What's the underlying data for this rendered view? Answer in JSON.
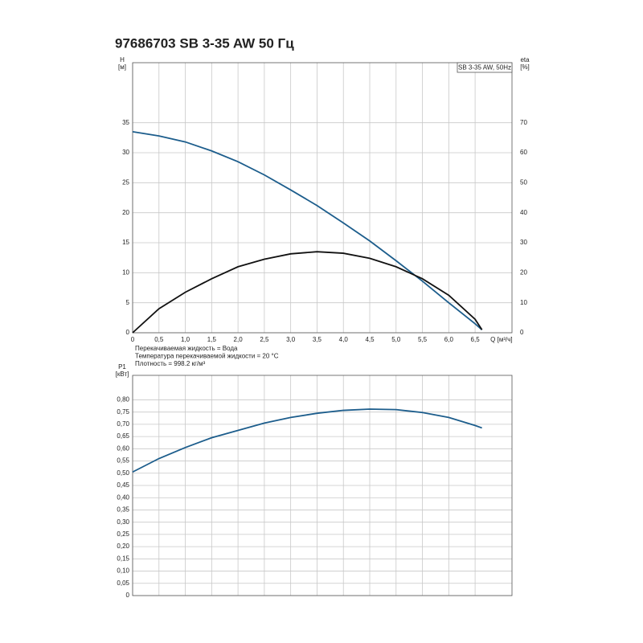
{
  "chart_data": [
    {
      "type": "line",
      "title": "97686703 SB 3-35 AW 50 Гц",
      "y_label": "H",
      "y_unit": "[м]",
      "y2_label": "eta",
      "y2_unit": "[%]",
      "x_label": "Q [м³/ч]",
      "annotation": "SB 3-35 AW, 50Hz",
      "notes": [
        "Перекачиваемая жидкость = Вода",
        "Температура перекачиваемой жидкости = 20 °C",
        "Плотность = 998.2 кг/м³"
      ],
      "x": [
        0,
        0.5,
        1.0,
        1.5,
        2.0,
        2.5,
        3.0,
        3.5,
        4.0,
        4.5,
        5.0,
        5.5,
        6.0,
        6.5,
        6.63
      ],
      "series": [
        {
          "color": "#1c5d8c",
          "values": [
            33.5,
            32.8,
            31.8,
            30.3,
            28.5,
            26.3,
            23.8,
            21.2,
            18.3,
            15.3,
            12.0,
            8.6,
            5.0,
            1.5,
            0.5
          ]
        },
        {
          "color": "#111111",
          "axis": "y2",
          "values": [
            0,
            8,
            13.5,
            18,
            22,
            24.5,
            26.3,
            27,
            26.5,
            24.8,
            22,
            18,
            12.5,
            4.5,
            1
          ]
        }
      ],
      "xlim": [
        0,
        7.2
      ],
      "xticks": [
        0,
        {
          "value": 0.5,
          "label": "0,5"
        },
        {
          "value": 1.0,
          "label": "1,0"
        },
        {
          "value": 1.5,
          "label": "1,5"
        },
        {
          "value": 2.0,
          "label": "2,0"
        },
        {
          "value": 2.5,
          "label": "2,5"
        },
        {
          "value": 3.0,
          "label": "3,0"
        },
        {
          "value": 3.5,
          "label": "3,5"
        },
        {
          "value": 4.0,
          "label": "4,0"
        },
        {
          "value": 4.5,
          "label": "4,5"
        },
        {
          "value": 5.0,
          "label": "5,0"
        },
        {
          "value": 5.5,
          "label": "5,5"
        },
        {
          "value": 6.0,
          "label": "6,0"
        },
        {
          "value": 6.5,
          "label": "6,5"
        }
      ],
      "ylim": [
        0,
        45
      ],
      "yticks": [
        0,
        5,
        10,
        15,
        20,
        25,
        30,
        35
      ],
      "y2lim": [
        0,
        90
      ],
      "y2ticks": [
        0,
        10,
        20,
        30,
        40,
        50,
        60,
        70
      ],
      "grid": true
    },
    {
      "type": "line",
      "y_label": "P1",
      "y_unit": "[кВт]",
      "x": [
        0,
        0.5,
        1.0,
        1.5,
        2.0,
        2.5,
        3.0,
        3.5,
        4.0,
        4.5,
        5.0,
        5.5,
        6.0,
        6.5,
        6.63
      ],
      "series": [
        {
          "color": "#1c5d8c",
          "values": [
            0.505,
            0.56,
            0.605,
            0.645,
            0.675,
            0.705,
            0.728,
            0.745,
            0.757,
            0.762,
            0.76,
            0.748,
            0.728,
            0.695,
            0.685
          ]
        }
      ],
      "xlim": [
        0,
        7.2
      ],
      "ylim": [
        0,
        0.9
      ],
      "yticks": [
        0,
        {
          "value": 0.05,
          "label": "0,05"
        },
        {
          "value": 0.1,
          "label": "0,10"
        },
        {
          "value": 0.15,
          "label": "0,15"
        },
        {
          "value": 0.2,
          "label": "0,20"
        },
        {
          "value": 0.25,
          "label": "0,25"
        },
        {
          "value": 0.3,
          "label": "0,30"
        },
        {
          "value": 0.35,
          "label": "0,35"
        },
        {
          "value": 0.4,
          "label": "0,40"
        },
        {
          "value": 0.45,
          "label": "0,45"
        },
        {
          "value": 0.5,
          "label": "0,50"
        },
        {
          "value": 0.55,
          "label": "0,55"
        },
        {
          "value": 0.6,
          "label": "0,60"
        },
        {
          "value": 0.65,
          "label": "0,65"
        },
        {
          "value": 0.7,
          "label": "0,70"
        },
        {
          "value": 0.75,
          "label": "0,75"
        },
        {
          "value": 0.8,
          "label": "0,80"
        }
      ],
      "grid": true
    }
  ]
}
